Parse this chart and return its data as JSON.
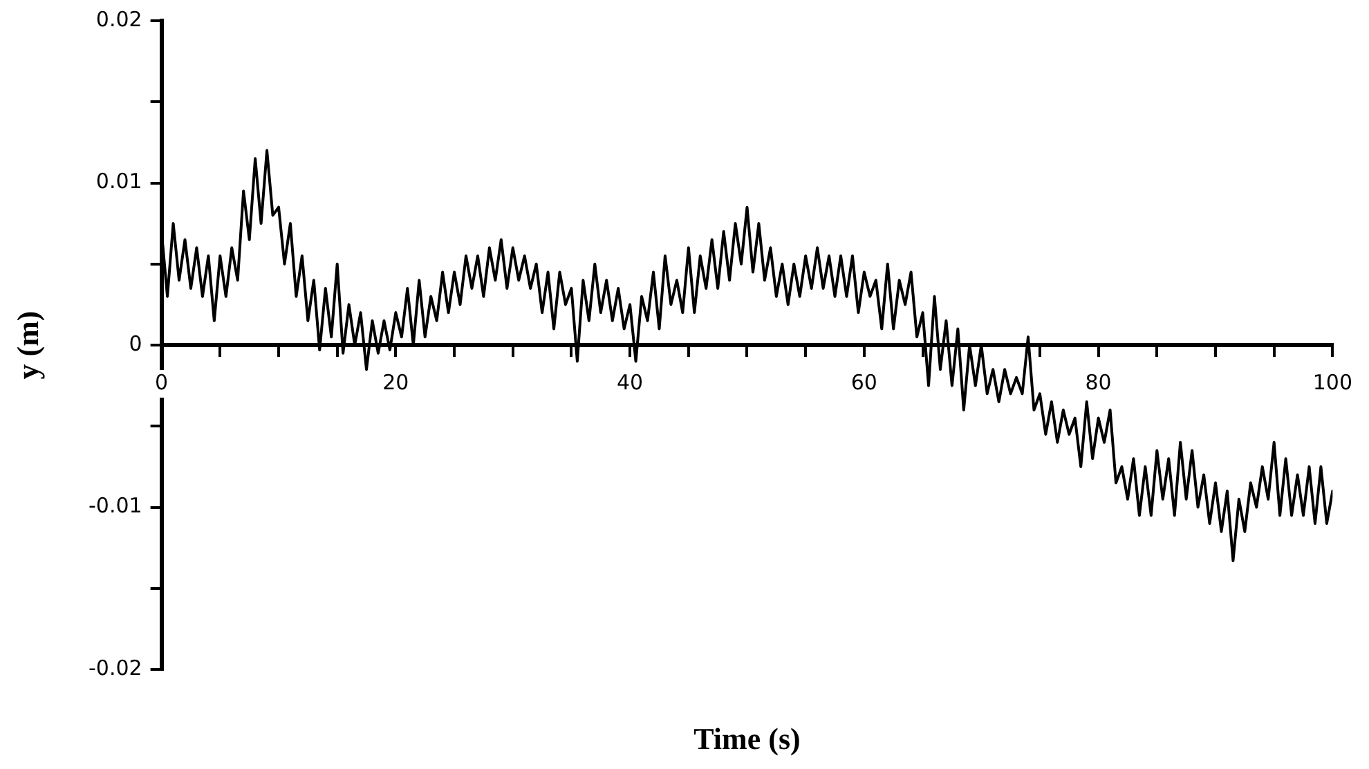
{
  "chart_data": {
    "type": "line",
    "xlabel": "Time (s)",
    "ylabel": "y (m)",
    "x": [
      0,
      0.5,
      1,
      1.5,
      2,
      2.5,
      3,
      3.5,
      4,
      4.5,
      5,
      5.5,
      6,
      6.5,
      7,
      7.5,
      8,
      8.5,
      9,
      9.5,
      10,
      10.5,
      11,
      11.5,
      12,
      12.5,
      13,
      13.5,
      14,
      14.5,
      15,
      15.5,
      16,
      16.5,
      17,
      17.5,
      18,
      18.5,
      19,
      19.5,
      20,
      20.5,
      21,
      21.5,
      22,
      22.5,
      23,
      23.5,
      24,
      24.5,
      25,
      25.5,
      26,
      26.5,
      27,
      27.5,
      28,
      28.5,
      29,
      29.5,
      30,
      30.5,
      31,
      31.5,
      32,
      32.5,
      33,
      33.5,
      34,
      34.5,
      35,
      35.5,
      36,
      36.5,
      37,
      37.5,
      38,
      38.5,
      39,
      39.5,
      40,
      40.5,
      41,
      41.5,
      42,
      42.5,
      43,
      43.5,
      44,
      44.5,
      45,
      45.5,
      46,
      46.5,
      47,
      47.5,
      48,
      48.5,
      49,
      49.5,
      50,
      50.5,
      51,
      51.5,
      52,
      52.5,
      53,
      53.5,
      54,
      54.5,
      55,
      55.5,
      56,
      56.5,
      57,
      57.5,
      58,
      58.5,
      59,
      59.5,
      60,
      60.5,
      61,
      61.5,
      62,
      62.5,
      63,
      63.5,
      64,
      64.5,
      65,
      65.5,
      66,
      66.5,
      67,
      67.5,
      68,
      68.5,
      69,
      69.5,
      70,
      70.5,
      71,
      71.5,
      72,
      72.5,
      73,
      73.5,
      74,
      74.5,
      75,
      75.5,
      76,
      76.5,
      77,
      77.5,
      78,
      78.5,
      79,
      79.5,
      80,
      80.5,
      81,
      81.5,
      82,
      82.5,
      83,
      83.5,
      84,
      84.5,
      85,
      85.5,
      86,
      86.5,
      87,
      87.5,
      88,
      88.5,
      89,
      89.5,
      90,
      90.5,
      91,
      91.5,
      92,
      92.5,
      93,
      93.5,
      94,
      94.5,
      95,
      95.5,
      96,
      96.5,
      97,
      97.5,
      98,
      98.5,
      99,
      99.5,
      100
    ],
    "series": [
      {
        "color": "#000000",
        "values": [
          0.007,
          0.003,
          0.0075,
          0.004,
          0.0065,
          0.0035,
          0.006,
          0.003,
          0.0055,
          0.0015,
          0.0055,
          0.003,
          0.006,
          0.004,
          0.0095,
          0.0065,
          0.0115,
          0.0075,
          0.012,
          0.008,
          0.0085,
          0.005,
          0.0075,
          0.003,
          0.0055,
          0.0015,
          0.004,
          -0.0003,
          0.0035,
          0.0005,
          0.005,
          -0.0005,
          0.0025,
          0,
          0.002,
          -0.0015,
          0.0015,
          -0.0005,
          0.0015,
          -0.0003,
          0.002,
          0.0005,
          0.0035,
          0,
          0.004,
          0.0005,
          0.003,
          0.0015,
          0.0045,
          0.002,
          0.0045,
          0.0025,
          0.0055,
          0.0035,
          0.0055,
          0.003,
          0.006,
          0.004,
          0.0065,
          0.0035,
          0.006,
          0.004,
          0.0055,
          0.0035,
          0.005,
          0.002,
          0.0045,
          0.001,
          0.0045,
          0.0025,
          0.0035,
          -0.001,
          0.004,
          0.0015,
          0.005,
          0.002,
          0.004,
          0.0015,
          0.0035,
          0.001,
          0.0025,
          -0.001,
          0.003,
          0.0015,
          0.0045,
          0.001,
          0.0055,
          0.0025,
          0.004,
          0.002,
          0.006,
          0.002,
          0.0055,
          0.0035,
          0.0065,
          0.0035,
          0.007,
          0.004,
          0.0075,
          0.005,
          0.0085,
          0.0045,
          0.0075,
          0.004,
          0.006,
          0.003,
          0.005,
          0.0025,
          0.005,
          0.003,
          0.0055,
          0.0035,
          0.006,
          0.0035,
          0.0055,
          0.003,
          0.0055,
          0.003,
          0.0055,
          0.002,
          0.0045,
          0.003,
          0.004,
          0.001,
          0.005,
          0.001,
          0.004,
          0.0025,
          0.0045,
          0.0005,
          0.002,
          -0.0025,
          0.003,
          -0.0015,
          0.0015,
          -0.0025,
          0.001,
          -0.004,
          0,
          -0.0025,
          0,
          -0.003,
          -0.0015,
          -0.0035,
          -0.0015,
          -0.003,
          -0.002,
          -0.003,
          0.0005,
          -0.004,
          -0.003,
          -0.0055,
          -0.0035,
          -0.006,
          -0.004,
          -0.0055,
          -0.0045,
          -0.0075,
          -0.0035,
          -0.007,
          -0.0045,
          -0.006,
          -0.004,
          -0.0085,
          -0.0075,
          -0.0095,
          -0.007,
          -0.0105,
          -0.0075,
          -0.0105,
          -0.0065,
          -0.0095,
          -0.007,
          -0.0105,
          -0.006,
          -0.0095,
          -0.0065,
          -0.01,
          -0.008,
          -0.011,
          -0.0085,
          -0.0115,
          -0.009,
          -0.0133,
          -0.0095,
          -0.0115,
          -0.0085,
          -0.01,
          -0.0075,
          -0.0095,
          -0.006,
          -0.0105,
          -0.007,
          -0.0105,
          -0.008,
          -0.0105,
          -0.0075,
          -0.011,
          -0.0075,
          -0.011,
          -0.009
        ]
      }
    ],
    "xlim": [
      0,
      100
    ],
    "xticks": [
      0,
      {
        "value": 5,
        "label": null
      },
      {
        "value": 10,
        "label": null
      },
      {
        "value": 15,
        "label": null
      },
      20,
      {
        "value": 25,
        "label": null
      },
      {
        "value": 30,
        "label": null
      },
      {
        "value": 35,
        "label": null
      },
      40,
      {
        "value": 45,
        "label": null
      },
      {
        "value": 50,
        "label": null
      },
      {
        "value": 55,
        "label": null
      },
      60,
      {
        "value": 65,
        "label": null
      },
      {
        "value": 70,
        "label": null
      },
      {
        "value": 75,
        "label": null
      },
      80,
      {
        "value": 85,
        "label": null
      },
      {
        "value": 90,
        "label": null
      },
      {
        "value": 95,
        "label": null
      },
      100
    ],
    "ylim": [
      -0.02,
      0.02
    ],
    "yticks": [
      -0.02,
      {
        "value": -0.015,
        "label": null
      },
      -0.01,
      {
        "value": -0.005,
        "label": null
      },
      0,
      {
        "value": 0.005,
        "label": null
      },
      0.01,
      {
        "value": 0.015,
        "label": null
      },
      0.02
    ],
    "grid": false,
    "legend": false,
    "marker": "none",
    "line_style": "solid"
  }
}
